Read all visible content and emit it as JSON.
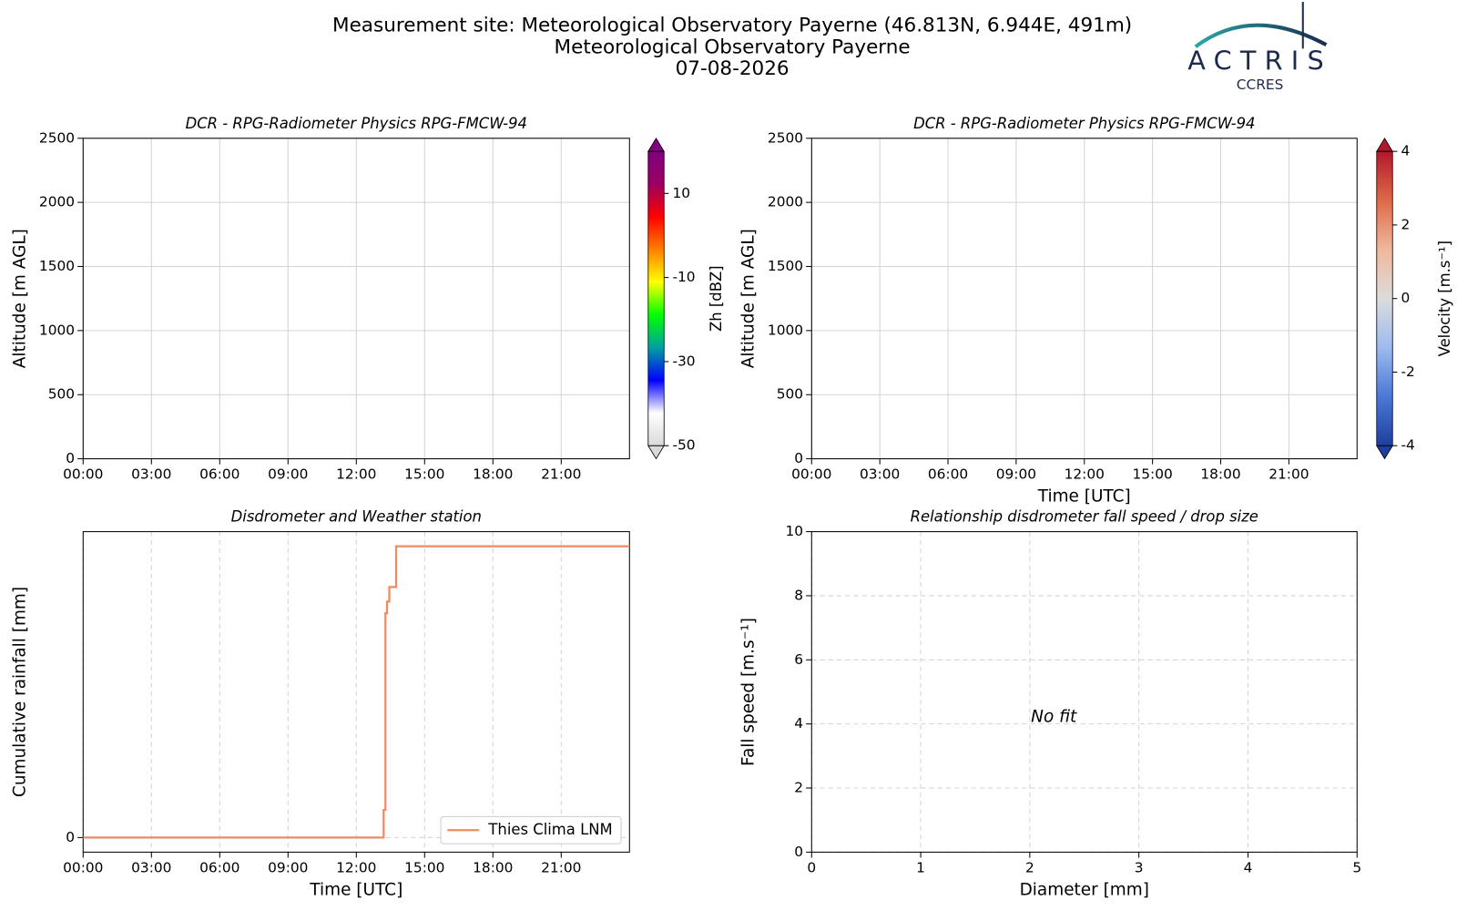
{
  "header": {
    "title": "Measurement site: Meteorological Observatory Payerne (46.813N, 6.944E, 491m)",
    "subtitle": "Meteorological Observatory Payerne",
    "date": "07-08-2026"
  },
  "logo": {
    "name": "ACTRIS",
    "sub": "CCRES"
  },
  "chart_data": [
    {
      "type": "heatmap",
      "title": "DCR - RPG-Radiometer Physics RPG-FMCW-94",
      "y_label": "Altitude [m AGL]",
      "xlim": [
        0,
        24
      ],
      "xticks": [
        {
          "value": 0,
          "label": "00:00"
        },
        {
          "value": 3,
          "label": "03:00"
        },
        {
          "value": 6,
          "label": "06:00"
        },
        {
          "value": 9,
          "label": "09:00"
        },
        {
          "value": 12,
          "label": "12:00"
        },
        {
          "value": 15,
          "label": "15:00"
        },
        {
          "value": 18,
          "label": "18:00"
        },
        {
          "value": 21,
          "label": "21:00"
        }
      ],
      "ylim": [
        0,
        2500
      ],
      "yticks": [
        0,
        500,
        1000,
        1500,
        2000,
        2500
      ],
      "grid": true,
      "grid_style": "solid",
      "colorbar": {
        "label": "Zh [dBZ]",
        "lim": [
          -50,
          20
        ],
        "ticks": [
          -50,
          -30,
          -10,
          10
        ],
        "colors": [
          "#d9d9d9",
          "#ffffff",
          "#0000ff",
          "#00a0a0",
          "#00ff00",
          "#ffff00",
          "#ff8000",
          "#ff0000",
          "#9b0060",
          "#800080"
        ]
      }
    },
    {
      "type": "heatmap",
      "title": "DCR - RPG-Radiometer Physics RPG-FMCW-94",
      "x_label": "Time [UTC]",
      "y_label": "Altitude [m AGL]",
      "xlim": [
        0,
        24
      ],
      "xticks": [
        {
          "value": 0,
          "label": "00:00"
        },
        {
          "value": 3,
          "label": "03:00"
        },
        {
          "value": 6,
          "label": "06:00"
        },
        {
          "value": 9,
          "label": "09:00"
        },
        {
          "value": 12,
          "label": "12:00"
        },
        {
          "value": 15,
          "label": "15:00"
        },
        {
          "value": 18,
          "label": "18:00"
        },
        {
          "value": 21,
          "label": "21:00"
        }
      ],
      "ylim": [
        0,
        2500
      ],
      "yticks": [
        0,
        500,
        1000,
        1500,
        2000,
        2500
      ],
      "grid": true,
      "grid_style": "solid",
      "colorbar": {
        "label": "Velocity [m.s⁻¹]",
        "lim": [
          -4,
          4
        ],
        "ticks": [
          -4,
          -2,
          0,
          2,
          4
        ],
        "colors": [
          "#1f3fa0",
          "#4a78d6",
          "#9dbbee",
          "#dcdcdc",
          "#f0b79c",
          "#dd6a48",
          "#b2182b"
        ]
      }
    },
    {
      "type": "line",
      "title": "Disdrometer and Weather station",
      "x_label": "Time [UTC]",
      "y_label": "Cumulative rainfall [mm]",
      "xlim": [
        0,
        24
      ],
      "xticks": [
        {
          "value": 0,
          "label": "00:00"
        },
        {
          "value": 3,
          "label": "03:00"
        },
        {
          "value": 6,
          "label": "06:00"
        },
        {
          "value": 9,
          "label": "09:00"
        },
        {
          "value": 12,
          "label": "12:00"
        },
        {
          "value": 15,
          "label": "15:00"
        },
        {
          "value": 18,
          "label": "18:00"
        },
        {
          "value": 21,
          "label": "21:00"
        }
      ],
      "ylim": [
        -0.1,
        2.1
      ],
      "yticks": [
        0
      ],
      "grid": true,
      "grid_style": "dashed",
      "legend": "lower right",
      "x": [
        0,
        13.2,
        13.2,
        13.28,
        13.28,
        13.35,
        13.35,
        13.45,
        13.45,
        13.75,
        13.75,
        24
      ],
      "series": [
        {
          "name": "Thies Clima LNM",
          "color": "#ef8a62",
          "values": [
            0,
            0,
            0.19,
            0.19,
            1.54,
            1.54,
            1.62,
            1.62,
            1.72,
            1.72,
            2.0,
            2.0
          ]
        }
      ]
    },
    {
      "type": "scatter",
      "title": "Relationship disdrometer fall speed / drop size",
      "x_label": "Diameter [mm]",
      "y_label": "Fall speed [m.s⁻¹]",
      "xlim": [
        0,
        5
      ],
      "xticks": [
        0,
        1,
        2,
        3,
        4,
        5
      ],
      "ylim": [
        0,
        10
      ],
      "yticks": [
        0,
        2,
        4,
        6,
        8,
        10
      ],
      "grid": true,
      "grid_style": "dashed",
      "annotation": "No fit"
    }
  ]
}
